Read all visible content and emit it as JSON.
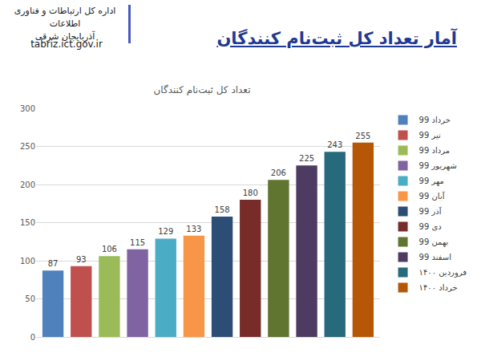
{
  "page": {
    "title": "آمار تعداد کل ثبت‌نام کنندگان",
    "org": [
      "اداره کل ارتباطات و فناوری اطلاعات",
      "آذربایجان شرقی"
    ],
    "url": "tabriz.ict.gov.ir"
  },
  "chart_data": {
    "type": "bar",
    "title": "تعداد کل ثبت‌نام کنندگان",
    "categories": [
      "خرداد 99",
      "تیر 99",
      "مرداد 99",
      "شهریور 99",
      "مهر 99",
      "آبان 99",
      "آذر 99",
      "دی 99",
      "بهمن 99",
      "اسفند 99",
      "فروردین ۱۴۰۰",
      "خرداد ۱۴۰۰"
    ],
    "values": [
      87,
      93,
      106,
      115,
      129,
      133,
      158,
      180,
      206,
      225,
      243,
      255
    ],
    "colors": [
      "#4f81bd",
      "#c0504d",
      "#9bbb59",
      "#8064a2",
      "#4bacc6",
      "#f79646",
      "#2c4d75",
      "#772c2a",
      "#5f7530",
      "#4d3b62",
      "#276a7c",
      "#b65708"
    ],
    "ylim": [
      0,
      300
    ],
    "yticks": [
      0,
      50,
      100,
      150,
      200,
      250,
      300
    ],
    "grid": true,
    "data_labels": true,
    "legend": "right",
    "tick_labels": "y"
  }
}
